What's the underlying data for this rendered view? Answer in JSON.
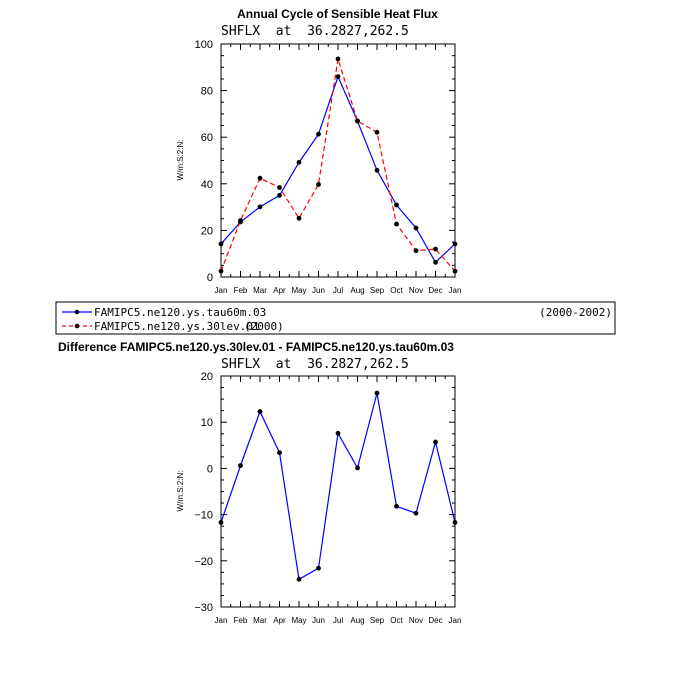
{
  "chart_data": [
    {
      "type": "line",
      "title": "Annual Cycle of Sensible Heat Flux",
      "subtitle": "SHFLX  at  36.2827,262.5",
      "ylabel": "W/m:S:2:N:",
      "xlabel": "",
      "categories": [
        "Jan",
        "Feb",
        "Mar",
        "Apr",
        "May",
        "Jun",
        "Jul",
        "Aug",
        "Sep",
        "Oct",
        "Nov",
        "Dec",
        "Jan"
      ],
      "ylim": [
        0,
        100
      ],
      "yticks": [
        0,
        20,
        40,
        60,
        80,
        100
      ],
      "grid": false,
      "legend_position": "bottom",
      "series": [
        {
          "name": "FAMIPC5.ne120.ys.tau60m.03",
          "period": "(2000-2002)",
          "color": "#0000ff",
          "dash": "solid",
          "values": [
            14.2,
            23.6,
            30.1,
            35.0,
            49.2,
            61.3,
            86.0,
            66.9,
            45.8,
            30.9,
            21.0,
            6.3,
            14.2
          ]
        },
        {
          "name": "FAMIPC5.ne120.ys.30lev.01",
          "period": "(2000)",
          "color": "#ff0000",
          "dash": "dashed",
          "values": [
            2.5,
            24.2,
            42.4,
            38.4,
            25.2,
            39.7,
            93.6,
            67.0,
            62.1,
            22.7,
            11.3,
            12.0,
            2.5
          ]
        }
      ]
    },
    {
      "type": "line",
      "title": "Difference FAMIPC5.ne120.ys.30lev.01 - FAMIPC5.ne120.ys.tau60m.03",
      "subtitle": "SHFLX  at  36.2827,262.5",
      "ylabel": "W/m:S:2:N:",
      "xlabel": "",
      "categories": [
        "Jan",
        "Feb",
        "Mar",
        "Apr",
        "May",
        "Jun",
        "Jul",
        "Aug",
        "Sep",
        "Oct",
        "Nov",
        "Dec",
        "Jan"
      ],
      "ylim": [
        -30,
        20
      ],
      "yticks": [
        -30,
        -20,
        -10,
        0,
        10,
        20
      ],
      "ytick_labels": [
        "−30",
        "−20",
        "−10",
        "0",
        "10",
        "20"
      ],
      "grid": false,
      "series": [
        {
          "color": "#0000ff",
          "dash": "solid",
          "values": [
            -11.7,
            0.6,
            12.3,
            3.4,
            -24.0,
            -21.6,
            7.6,
            0.1,
            16.3,
            -8.2,
            -9.7,
            5.7,
            -11.7
          ]
        }
      ]
    }
  ]
}
